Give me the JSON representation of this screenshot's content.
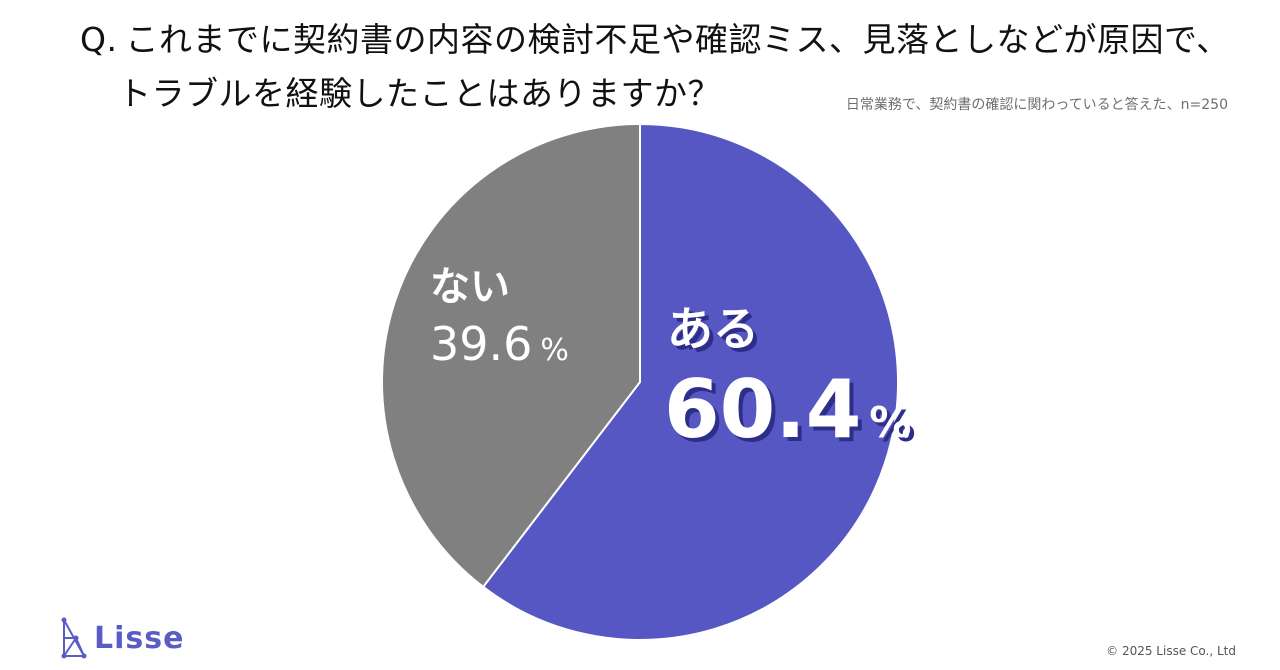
{
  "question": {
    "prefix": "Q.",
    "line1": "これまでに契約書の内容の検討不足や確認ミス、見落としなどが原因で、",
    "line2": "トラブルを経験したことはありますか？"
  },
  "respondents_note": "日常業務で、契約書の確認に関わっていると答えた、n=250",
  "chart_data": {
    "type": "pie",
    "categories": [
      "ある",
      "ない"
    ],
    "values": [
      60.4,
      39.6
    ],
    "unit": "%",
    "value_labels": [
      "60.4",
      "39.6"
    ],
    "colors": [
      "#5757c4",
      "#808080"
    ],
    "start_angle": "12 o'clock",
    "direction": "clockwise"
  },
  "logo": {
    "text": "Lisse",
    "color": "#5a5cc6"
  },
  "copyright": "© 2025 Lisse Co., Ltd"
}
